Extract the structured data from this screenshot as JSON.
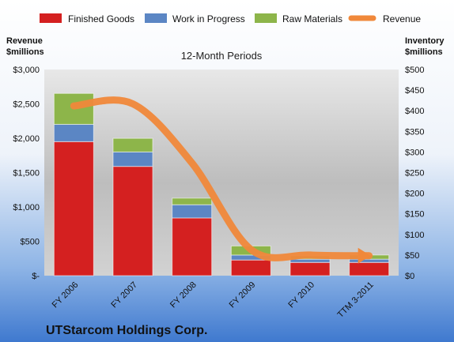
{
  "chart_data": {
    "type": "bar",
    "stacked": true,
    "subtitle": "12-Month Periods",
    "company": "UTStarcom Holdings Corp.",
    "left_axis": {
      "title_line1": "Revenue",
      "title_line2": "$millions",
      "range": [
        0,
        3000
      ],
      "ticks": [
        "$-",
        "$500",
        "$1,000",
        "$1,500",
        "$2,000",
        "$2,500",
        "$3,000"
      ]
    },
    "right_axis": {
      "title_line1": "Inventory",
      "title_line2": "$millions",
      "range": [
        0,
        500
      ],
      "ticks": [
        "$0",
        "$50",
        "$100",
        "$150",
        "$200",
        "$250",
        "$300",
        "$350",
        "$400",
        "$450",
        "$500"
      ]
    },
    "categories": [
      "FY 2006",
      "FY 2007",
      "FY 2008",
      "FY 2009",
      "FY 2010",
      "TTM 3-2011"
    ],
    "bar_series": [
      {
        "name": "Finished Goods",
        "axis": "right",
        "color": "#d42020",
        "values": [
          325,
          265,
          140,
          38,
          32,
          32
        ]
      },
      {
        "name": "Work in Progress",
        "axis": "right",
        "color": "#5b86c4",
        "values": [
          42,
          35,
          32,
          12,
          8,
          8
        ]
      },
      {
        "name": "Raw Materials",
        "axis": "right",
        "color": "#8db54a",
        "values": [
          75,
          33,
          16,
          22,
          8,
          10
        ]
      }
    ],
    "line_series": [
      {
        "name": "Revenue",
        "axis": "left",
        "color": "#f0883a",
        "values": [
          2470,
          2500,
          1640,
          380,
          300,
          290
        ]
      }
    ],
    "legend_position": "top",
    "grid": false
  }
}
